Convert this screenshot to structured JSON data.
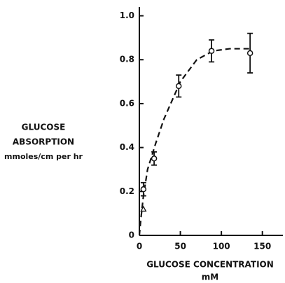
{
  "chart_data": {
    "type": "scatter",
    "ylabel": [
      "GLUCOSE",
      "ABSORPTION",
      "mmoles/cm per hr"
    ],
    "xlabel": [
      "GLUCOSE CONCENTRATION",
      "mM"
    ],
    "xlim": [
      0,
      175
    ],
    "ylim": [
      0,
      1.04
    ],
    "xticks": [
      0,
      50,
      100,
      150
    ],
    "yticks": [
      0,
      {
        "value": 0.2,
        "label": "0.2"
      },
      {
        "value": 0.4,
        "label": "0.4"
      },
      {
        "value": 0.6,
        "label": "0.6"
      },
      {
        "value": 0.8,
        "label": "0.8"
      },
      {
        "value": 1.0,
        "label": "1.0"
      }
    ],
    "points": {
      "x": [
        5,
        18,
        48,
        88,
        135
      ],
      "y": [
        0.21,
        0.35,
        0.68,
        0.84,
        0.83
      ],
      "error": [
        0.03,
        0.03,
        0.05,
        0.05,
        0.09
      ]
    },
    "triangle_points": {
      "x": [
        5
      ],
      "y": [
        0.12
      ]
    },
    "curve": {
      "x": [
        0,
        2,
        5,
        10,
        20,
        30,
        50,
        70,
        90,
        110,
        135
      ],
      "y": [
        0,
        0.08,
        0.18,
        0.3,
        0.42,
        0.53,
        0.7,
        0.8,
        0.84,
        0.85,
        0.85
      ]
    },
    "color": "#111111"
  }
}
